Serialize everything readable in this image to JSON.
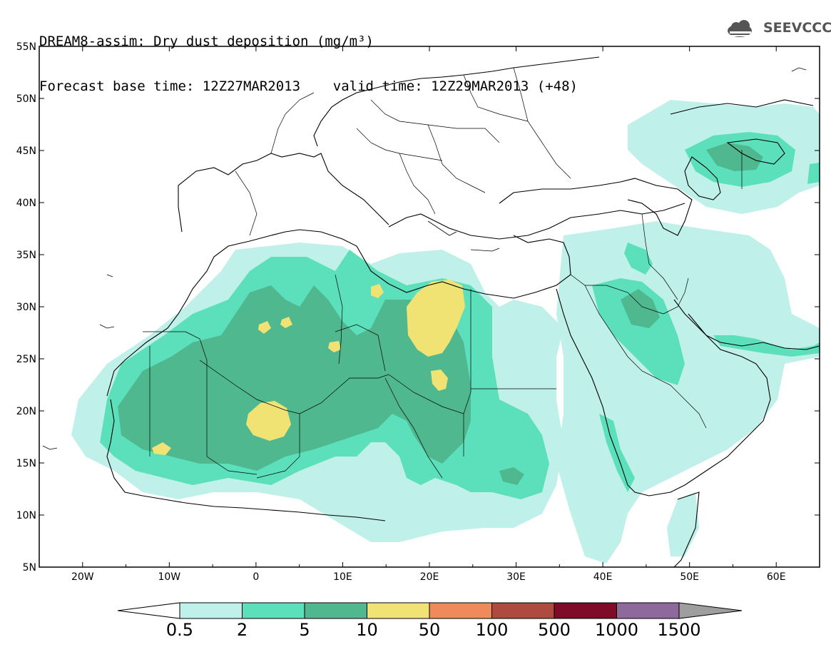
{
  "header": {
    "title_line1": "DREAM8-assim: Dry dust deposition (mg/m³)",
    "title_line2": "Forecast base time: 12Z27MAR2013    valid time: 12Z29MAR2013 (+48)"
  },
  "logo": {
    "text": "SEEVCCC",
    "icon": "cloud-logo-icon",
    "color": "#555555"
  },
  "map": {
    "lon_range": [
      -25,
      65
    ],
    "lat_range": [
      5,
      55
    ],
    "lat_ticks": [
      "5N",
      "10N",
      "15N",
      "20N",
      "25N",
      "30N",
      "35N",
      "40N",
      "45N",
      "50N",
      "55N"
    ],
    "lon_ticks": [
      "20W",
      "10W",
      "0",
      "10E",
      "20E",
      "30E",
      "40E",
      "50E",
      "60E"
    ]
  },
  "legend": {
    "labels": [
      "0.5",
      "2",
      "5",
      "10",
      "50",
      "100",
      "500",
      "1000",
      "1500"
    ],
    "colors": [
      "#ffffff",
      "#bff0ea",
      "#5ce0bb",
      "#4fb88e",
      "#f0e374",
      "#ef8a5d",
      "#ae4a40",
      "#7f0b29",
      "#8e6a9c",
      "#9e9e9e"
    ]
  }
}
